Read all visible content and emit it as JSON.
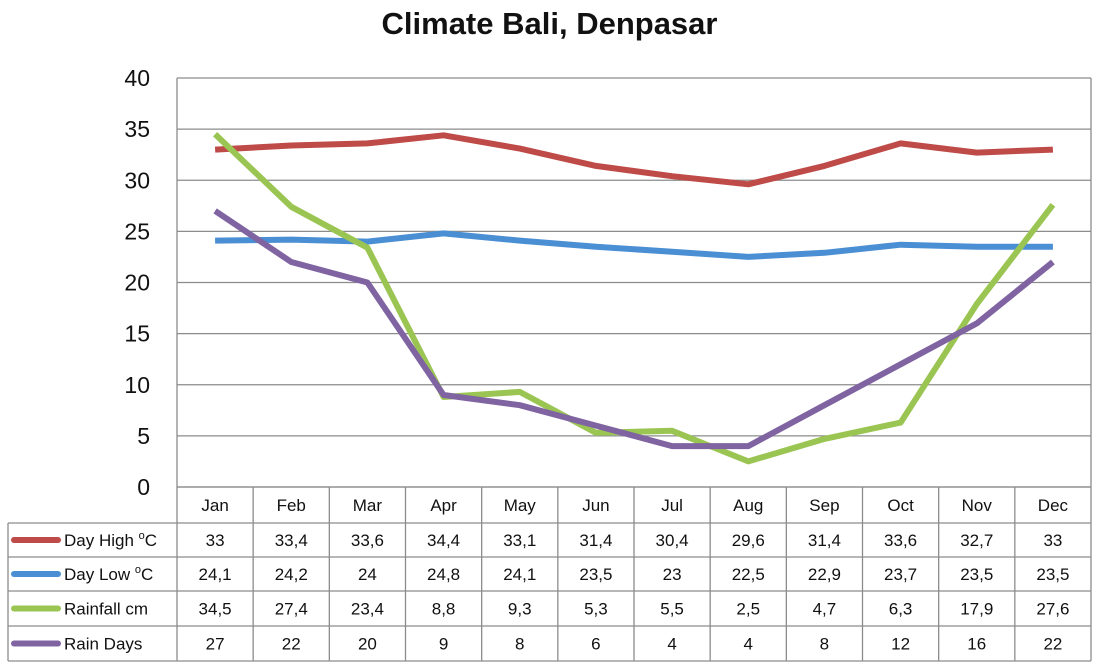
{
  "chart_data": {
    "type": "line",
    "title": "Climate Bali, Denpasar",
    "categories": [
      "Jan",
      "Feb",
      "Mar",
      "Apr",
      "May",
      "Jun",
      "Jul",
      "Aug",
      "Sep",
      "Oct",
      "Nov",
      "Dec"
    ],
    "ylim": [
      0,
      40
    ],
    "yticks": [
      "0",
      "5",
      "10",
      "15",
      "20",
      "25",
      "30",
      "35",
      "40"
    ],
    "grid": true,
    "legend": "data-table-below",
    "series": [
      {
        "name": "Day High",
        "unit": "C",
        "color": "#be4b48",
        "values": [
          33,
          33.4,
          33.6,
          34.4,
          33.1,
          31.4,
          30.4,
          29.6,
          31.4,
          33.6,
          32.7,
          33
        ],
        "labels": [
          "33",
          "33,4",
          "33,6",
          "34,4",
          "33,1",
          "31,4",
          "30,4",
          "29,6",
          "31,4",
          "33,6",
          "32,7",
          "33"
        ]
      },
      {
        "name": "Day Low",
        "unit": "C",
        "color": "#4a8ed3",
        "values": [
          24.1,
          24.2,
          24,
          24.8,
          24.1,
          23.5,
          23,
          22.5,
          22.9,
          23.7,
          23.5,
          23.5
        ],
        "labels": [
          "24,1",
          "24,2",
          "24",
          "24,8",
          "24,1",
          "23,5",
          "23",
          "22,5",
          "22,9",
          "23,7",
          "23,5",
          "23,5"
        ]
      },
      {
        "name": "Rainfall cm",
        "unit": "",
        "color": "#9bc553",
        "values": [
          34.5,
          27.4,
          23.4,
          8.8,
          9.3,
          5.3,
          5.5,
          2.5,
          4.7,
          6.3,
          17.9,
          27.6
        ],
        "labels": [
          "34,5",
          "27,4",
          "23,4",
          "8,8",
          "9,3",
          "5,3",
          "5,5",
          "2,5",
          "4,7",
          "6,3",
          "17,9",
          "27,6"
        ]
      },
      {
        "name": "Rain Days",
        "unit": "",
        "color": "#8064a2",
        "values": [
          27,
          22,
          20,
          9,
          8,
          6,
          4,
          4,
          8,
          12,
          16,
          22
        ],
        "labels": [
          "27",
          "22",
          "20",
          "9",
          "8",
          "6",
          "4",
          "4",
          "8",
          "12",
          "16",
          "22"
        ]
      }
    ]
  }
}
